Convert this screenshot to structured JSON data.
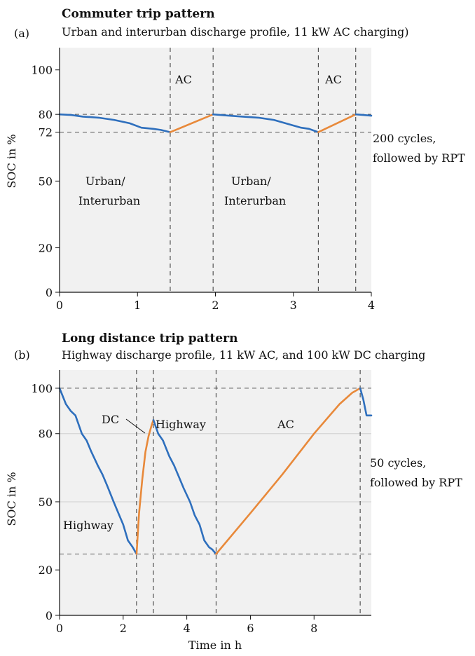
{
  "chart_data": [
    {
      "type": "line",
      "panel": "(a)",
      "title": "Commuter trip pattern",
      "subtitle": "Urban and interurban discharge profile, 11 kW AC charging)",
      "xlabel": "",
      "ylabel": "SOC in %",
      "xlim": [
        0,
        4
      ],
      "ylim": [
        0,
        110
      ],
      "xticks": [
        "0",
        "1",
        "2",
        "3",
        "4"
      ],
      "yticks": [
        "0",
        "20",
        "50",
        "72",
        "80",
        "100"
      ],
      "reference_lines_y": [
        72,
        80
      ],
      "vertical_dashed_x": [
        1.42,
        1.97,
        3.32,
        3.8
      ],
      "annotations": [
        "AC",
        "AC",
        "Urban/",
        "Interurban",
        "Urban/",
        "Interurban"
      ],
      "side_note": [
        "200 cycles,",
        "followed by RPT"
      ],
      "colors": {
        "discharge": "#2e6fbd",
        "charge": "#e8893a",
        "background": "#f1f1f1"
      },
      "series": [
        {
          "name": "discharge",
          "color": "#2e6fbd",
          "x": [
            0,
            0.15,
            0.3,
            0.5,
            0.7,
            0.9,
            1.05,
            1.2,
            1.3,
            1.42
          ],
          "y": [
            80,
            79.7,
            79,
            78.5,
            77.5,
            76,
            74,
            73.5,
            73,
            72
          ]
        },
        {
          "name": "charge",
          "color": "#e8893a",
          "x": [
            1.42,
            1.97
          ],
          "y": [
            72,
            80
          ]
        },
        {
          "name": "discharge",
          "color": "#2e6fbd",
          "x": [
            1.97,
            2.15,
            2.35,
            2.55,
            2.75,
            2.95,
            3.1,
            3.2,
            3.32
          ],
          "y": [
            80,
            79.5,
            79,
            78.5,
            77.5,
            75.5,
            74,
            73.5,
            72
          ]
        },
        {
          "name": "charge",
          "color": "#e8893a",
          "x": [
            3.32,
            3.8
          ],
          "y": [
            72,
            80
          ]
        },
        {
          "name": "discharge",
          "color": "#2e6fbd",
          "x": [
            3.8,
            3.9,
            4.0
          ],
          "y": [
            80,
            79.7,
            79.4
          ]
        }
      ]
    },
    {
      "type": "line",
      "panel": "(b)",
      "title": "Long distance trip pattern",
      "subtitle": "Highway discharge profile, 11 kW AC, and 100 kW DC charging",
      "xlabel": "Time in h",
      "ylabel": "SOC in %",
      "xlim": [
        0,
        9.8
      ],
      "ylim": [
        0,
        108
      ],
      "xticks": [
        "0",
        "2",
        "4",
        "6",
        "8"
      ],
      "yticks": [
        "0",
        "20",
        "50",
        "80",
        "100"
      ],
      "reference_lines_y": [
        100,
        27
      ],
      "vertical_dashed_x": [
        2.42,
        2.95,
        4.92,
        9.45
      ],
      "annotations": [
        "DC",
        "Highway",
        "AC",
        "Highway"
      ],
      "side_note": [
        "50 cycles,",
        "followed by RPT"
      ],
      "colors": {
        "discharge": "#2e6fbd",
        "charge": "#e8893a",
        "background": "#f1f1f1"
      },
      "series": [
        {
          "name": "discharge",
          "color": "#2e6fbd",
          "x": [
            0,
            0.2,
            0.35,
            0.5,
            0.7,
            0.85,
            1.0,
            1.2,
            1.35,
            1.5,
            1.7,
            1.85,
            2.0,
            2.15,
            2.3,
            2.42
          ],
          "y": [
            100,
            93,
            90,
            88,
            80,
            77,
            72,
            66,
            62,
            57,
            50,
            45,
            40,
            33,
            30,
            27
          ]
        },
        {
          "name": "charge",
          "color": "#e8893a",
          "x": [
            2.42,
            2.5,
            2.6,
            2.7,
            2.8,
            2.9,
            2.95
          ],
          "y": [
            27,
            45,
            60,
            72,
            79,
            84,
            86
          ]
        },
        {
          "name": "discharge",
          "color": "#2e6fbd",
          "x": [
            2.95,
            3.1,
            3.25,
            3.45,
            3.6,
            3.75,
            3.9,
            4.1,
            4.25,
            4.4,
            4.55,
            4.7,
            4.8,
            4.92
          ],
          "y": [
            86,
            80,
            77,
            70,
            66,
            61,
            56,
            50,
            44,
            40,
            33,
            30,
            29,
            27
          ]
        },
        {
          "name": "charge",
          "color": "#e8893a",
          "x": [
            4.92,
            6.0,
            7.0,
            8.0,
            8.8,
            9.2,
            9.45
          ],
          "y": [
            27,
            45,
            62,
            80,
            93,
            98,
            100
          ]
        },
        {
          "name": "discharge",
          "color": "#2e6fbd",
          "x": [
            9.45,
            9.55,
            9.65,
            9.8
          ],
          "y": [
            100,
            95,
            88,
            88
          ]
        }
      ]
    }
  ]
}
